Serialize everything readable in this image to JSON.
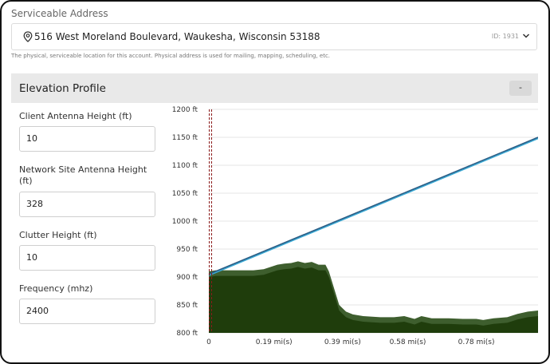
{
  "address": {
    "label": "Serviceable Address",
    "value": "516 West Moreland Boulevard, Waukesha, Wisconsin 53188",
    "id_text": "ID: 1931",
    "help": "The physical, serviceable location for this account. Physical address is used for mailing, mapping, scheduling, etc."
  },
  "elevation": {
    "title": "Elevation Profile",
    "collapse_label": "-",
    "fields": [
      {
        "label": "Client Antenna Height (ft)",
        "value": "10"
      },
      {
        "label": "Network Site Antenna Height (ft)",
        "value": "328"
      },
      {
        "label": "Clutter Height (ft)",
        "value": "10"
      },
      {
        "label": "Frequency (mhz)",
        "value": "2400"
      }
    ]
  },
  "colors": {
    "terrain_dark": "#1f3d0c",
    "terrain_light": "#3e5e2e",
    "los_line": "#2b5d85",
    "fresnel_line": "#39a9d4",
    "marker": "#8b1a1a"
  },
  "chart_data": {
    "type": "area",
    "xlabel": "",
    "ylabel": "",
    "y_ticks": [
      "1200 ft",
      "1150 ft",
      "1100 ft",
      "1050 ft",
      "1000 ft",
      "950 ft",
      "900 ft",
      "850 ft",
      "800 ft"
    ],
    "x_ticks": [
      {
        "label": "0",
        "x": 0
      },
      {
        "label": "0.19 mi(s)",
        "x": 0.19
      },
      {
        "label": "0.39 mi(s)",
        "x": 0.39
      },
      {
        "label": "0.58 mi(s)",
        "x": 0.58
      },
      {
        "label": "0.78 mi(s)",
        "x": 0.78
      }
    ],
    "xlim": [
      0,
      0.96
    ],
    "ylim": [
      800,
      1200
    ],
    "grid": true,
    "series": [
      {
        "kind": "los",
        "x": [
          0,
          0.96
        ],
        "y": [
          905,
          1150
        ]
      },
      {
        "kind": "terrain",
        "x": [
          0,
          0.02,
          0.05,
          0.1,
          0.13,
          0.16,
          0.2,
          0.22,
          0.24,
          0.26,
          0.28,
          0.3,
          0.32,
          0.34,
          0.35,
          0.36,
          0.37,
          0.38,
          0.39,
          0.4,
          0.42,
          0.45,
          0.5,
          0.54,
          0.57,
          0.6,
          0.62,
          0.65,
          0.7,
          0.74,
          0.78,
          0.8,
          0.83,
          0.87,
          0.9,
          0.93,
          0.96
        ],
        "y": [
          900,
          902,
          902,
          902,
          902,
          904,
          912,
          914,
          915,
          918,
          915,
          917,
          912,
          912,
          900,
          880,
          860,
          840,
          834,
          828,
          823,
          820,
          818,
          818,
          820,
          815,
          820,
          816,
          816,
          815,
          815,
          813,
          816,
          818,
          824,
          828,
          830
        ],
        "clutter_ft": 10
      }
    ]
  }
}
